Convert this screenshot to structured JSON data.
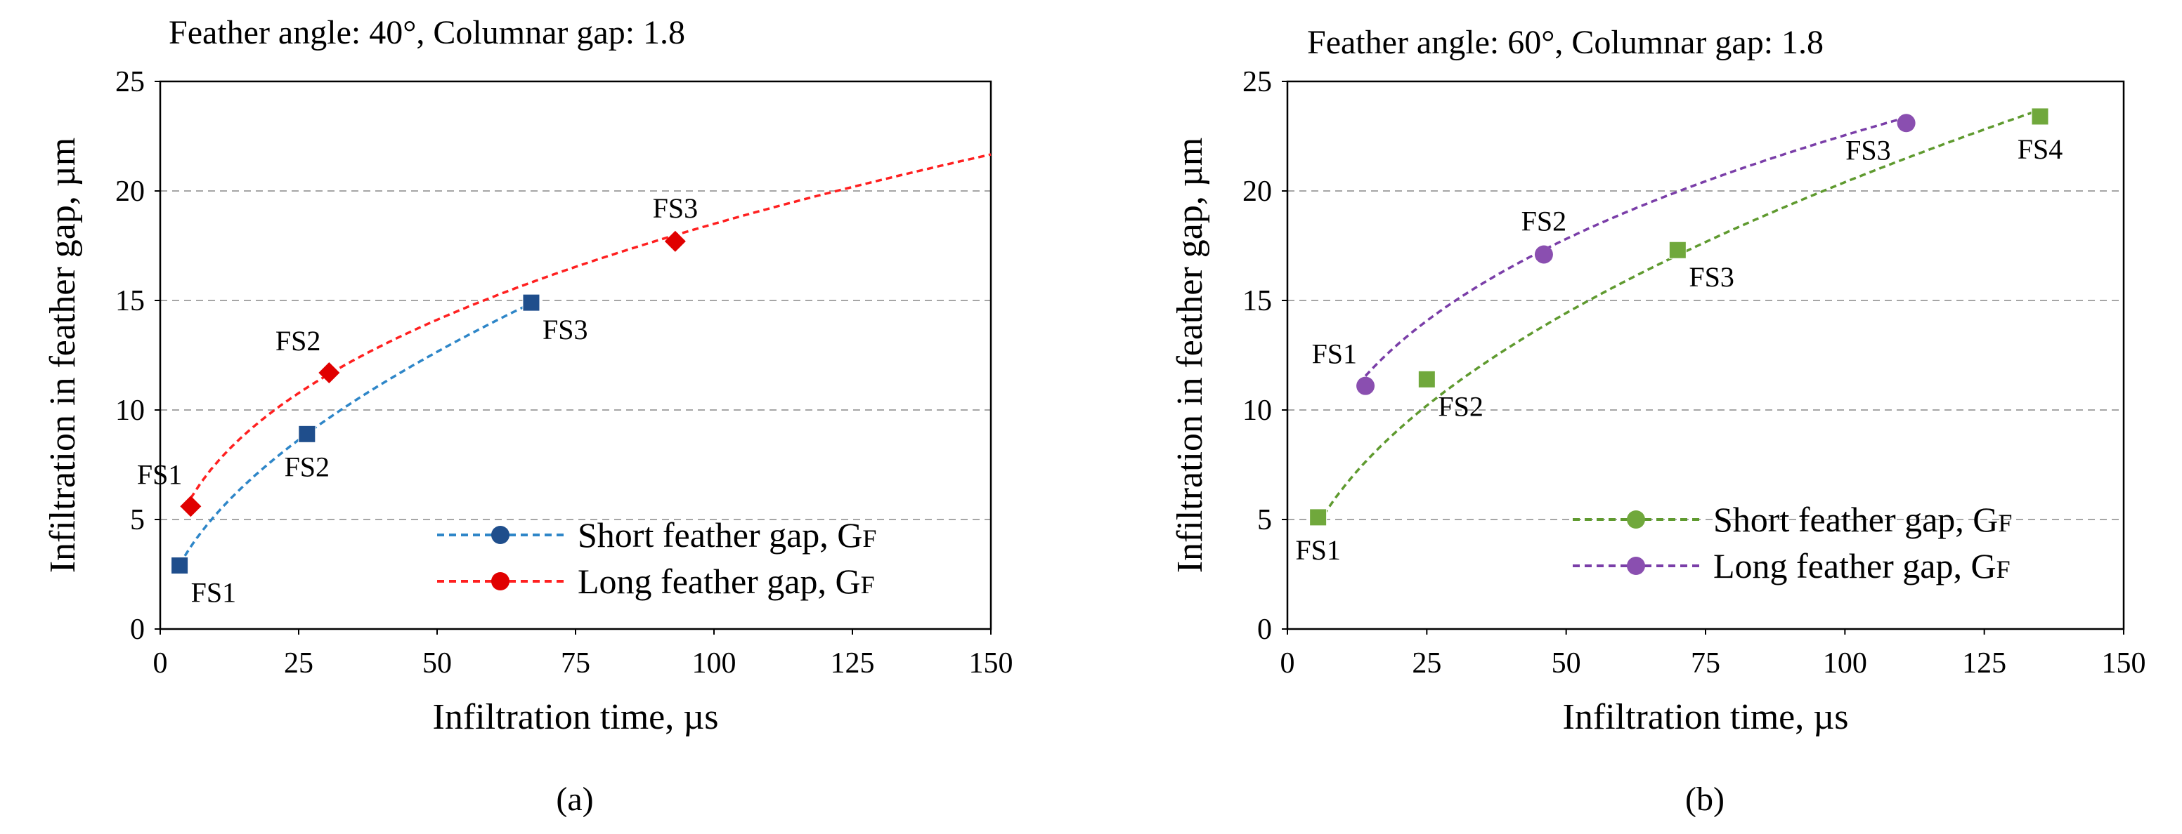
{
  "colors": {
    "blue": "#1f4e8c",
    "blue_line": "#2e86c8",
    "red": "#e00000",
    "red_line": "#ff2020",
    "green": "#70a83c",
    "green_line": "#5f9a2f",
    "purple": "#8a4fb0",
    "purple_line": "#7a3ea8",
    "grid": "#a6a6a6",
    "frame": "#000000"
  },
  "chart_data": [
    {
      "type": "scatter",
      "panel_caption": "(a)",
      "title": "Feather angle: 40°, Columnar gap: 1.8",
      "xlabel": "Infiltration time, µs",
      "ylabel": "Infiltration in feather gap, µm",
      "xlim": [
        0,
        150
      ],
      "ylim": [
        0,
        25
      ],
      "xticks": [
        0,
        25,
        50,
        75,
        100,
        125,
        150
      ],
      "yticks": [
        0,
        5,
        10,
        15,
        20,
        25
      ],
      "grid": "horizontal-dashed",
      "legend_position": "bottom-right",
      "series": [
        {
          "name": "Short feather gap, G",
          "subscript": "F",
          "marker": "square",
          "legend_marker": "circle",
          "color": "#1f4e8c",
          "line_color": "#2e86c8",
          "points": [
            {
              "x": 3.5,
              "y": 2.9,
              "label": "FS1",
              "label_pos": "below-right"
            },
            {
              "x": 26.5,
              "y": 8.9,
              "label": "FS2",
              "label_pos": "below"
            },
            {
              "x": 67,
              "y": 14.9,
              "label": "FS3",
              "label_pos": "below-right"
            }
          ],
          "trend": {
            "a": 1.466,
            "b": 0.551,
            "x_range": [
              3.5,
              67
            ]
          }
        },
        {
          "name": "Long feather gap, G",
          "subscript": "F",
          "marker": "diamond",
          "legend_marker": "circle",
          "color": "#e00000",
          "line_color": "#ff2020",
          "points": [
            {
              "x": 5.5,
              "y": 5.6,
              "label": "FS1",
              "label_pos": "above-left"
            },
            {
              "x": 30.5,
              "y": 11.7,
              "label": "FS2",
              "label_pos": "above-left"
            },
            {
              "x": 93,
              "y": 17.7,
              "label": "FS3",
              "label_pos": "above"
            }
          ],
          "trend": {
            "a": 3.07,
            "b": 0.39,
            "x_range": [
              5.5,
              150
            ]
          }
        }
      ]
    },
    {
      "type": "scatter",
      "panel_caption": "(b)",
      "title": "Feather angle: 60°, Columnar gap: 1.8",
      "xlabel": "Infiltration time, µs",
      "ylabel": "Infiltration in feather gap, µm",
      "xlim": [
        0,
        150
      ],
      "ylim": [
        0,
        25
      ],
      "xticks": [
        0,
        25,
        50,
        75,
        100,
        125,
        150
      ],
      "yticks": [
        0,
        5,
        10,
        15,
        20,
        25
      ],
      "grid": "horizontal-dashed",
      "legend_position": "bottom-right",
      "series": [
        {
          "name": "Short feather gap, G",
          "subscript": "F",
          "marker": "square",
          "legend_marker": "circle",
          "color": "#70a83c",
          "line_color": "#5f9a2f",
          "points": [
            {
              "x": 5.5,
              "y": 5.1,
              "label": "FS1",
              "label_pos": "below"
            },
            {
              "x": 25,
              "y": 11.4,
              "label": "FS2",
              "label_pos": "below-right"
            },
            {
              "x": 70,
              "y": 17.3,
              "label": "FS3",
              "label_pos": "below-right"
            },
            {
              "x": 135,
              "y": 23.4,
              "label": "FS4",
              "label_pos": "below"
            }
          ],
          "trend": {
            "a": 2.04,
            "b": 0.5,
            "x_range": [
              5.5,
              135
            ]
          }
        },
        {
          "name": "Long feather gap, G",
          "subscript": "F",
          "marker": "circle",
          "legend_marker": "circle",
          "color": "#8a4fb0",
          "line_color": "#7a3ea8",
          "points": [
            {
              "x": 14,
              "y": 11.1,
              "label": "FS1",
              "label_pos": "above-left"
            },
            {
              "x": 46,
              "y": 17.1,
              "label": "FS2",
              "label_pos": "above"
            },
            {
              "x": 111,
              "y": 23.1,
              "label": "FS3",
              "label_pos": "below-left"
            }
          ],
          "trend": {
            "a": 4.71,
            "b": 0.34,
            "x_range": [
              14,
              111
            ]
          }
        }
      ]
    }
  ]
}
